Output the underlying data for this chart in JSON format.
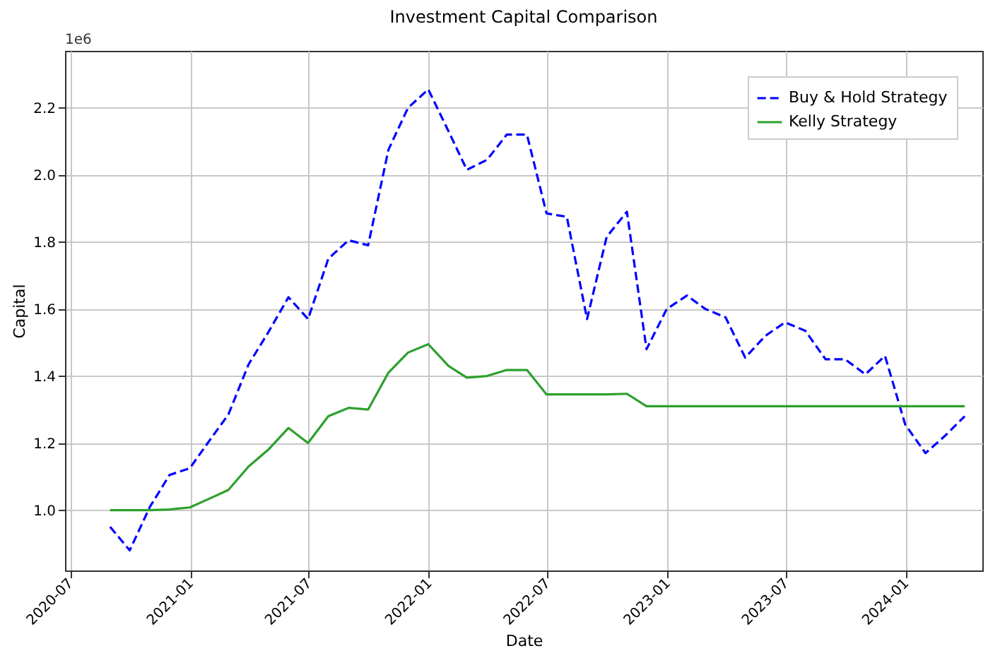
{
  "chart_data": {
    "type": "line",
    "title": "Investment Capital Comparison",
    "xlabel": "Date",
    "ylabel": "Capital",
    "annotations": [
      "1e6"
    ],
    "x": [
      "2020-08-31",
      "2020-09-30",
      "2020-10-31",
      "2020-11-30",
      "2020-12-31",
      "2021-01-31",
      "2021-02-28",
      "2021-03-31",
      "2021-04-30",
      "2021-05-31",
      "2021-06-30",
      "2021-07-31",
      "2021-08-31",
      "2021-09-30",
      "2021-10-31",
      "2021-11-30",
      "2021-12-31",
      "2022-01-31",
      "2022-02-28",
      "2022-03-31",
      "2022-04-30",
      "2022-05-31",
      "2022-06-30",
      "2022-07-31",
      "2022-08-31",
      "2022-09-30",
      "2022-10-31",
      "2022-11-30",
      "2022-12-31",
      "2023-01-31",
      "2023-02-28",
      "2023-03-31",
      "2023-04-30",
      "2023-05-31",
      "2023-06-30",
      "2023-07-31",
      "2023-08-31",
      "2023-09-30",
      "2023-10-31",
      "2023-11-30",
      "2023-12-31",
      "2024-01-31",
      "2024-02-29",
      "2024-03-31"
    ],
    "series": [
      {
        "name": "Buy & Hold Strategy",
        "color": "#0000ff",
        "line_style": "dashed",
        "values": [
          0.95,
          0.88,
          1.01,
          1.105,
          1.125,
          1.21,
          1.285,
          1.435,
          1.53,
          1.635,
          1.57,
          1.75,
          1.805,
          1.79,
          2.075,
          2.2,
          2.255,
          2.13,
          2.015,
          2.045,
          2.12,
          2.12,
          1.885,
          1.875,
          1.57,
          1.815,
          1.89,
          1.48,
          1.6,
          1.64,
          1.6,
          1.575,
          1.455,
          1.52,
          1.56,
          1.535,
          1.45,
          1.45,
          1.405,
          1.46,
          1.255,
          1.17,
          1.22,
          1.28
        ]
      },
      {
        "name": "Kelly Strategy",
        "color": "#2ca02c",
        "line_style": "solid",
        "values": [
          1.0,
          1.0,
          1.0,
          1.002,
          1.008,
          1.035,
          1.06,
          1.13,
          1.18,
          1.245,
          1.2,
          1.28,
          1.305,
          1.3,
          1.41,
          1.47,
          1.495,
          1.43,
          1.395,
          1.4,
          1.418,
          1.418,
          1.345,
          1.345,
          1.345,
          1.345,
          1.347,
          1.31,
          1.31,
          1.31,
          1.31,
          1.31,
          1.31,
          1.31,
          1.31,
          1.31,
          1.31,
          1.31,
          1.31,
          1.31,
          1.31,
          1.31,
          1.31,
          1.31
        ]
      }
    ],
    "xlim": [
      "2020-06-23",
      "2024-04-27"
    ],
    "xticks": [
      "2020-07",
      "2021-01",
      "2021-07",
      "2022-01",
      "2022-07",
      "2023-01",
      "2023-07",
      "2024-01"
    ],
    "ylim": [
      0.82,
      2.37
    ],
    "yticks": [
      {
        "value": 1.0,
        "label": "1.0"
      },
      {
        "value": 1.2,
        "label": "1.2"
      },
      {
        "value": 1.4,
        "label": "1.4"
      },
      {
        "value": 1.6,
        "label": "1.6"
      },
      {
        "value": 1.8,
        "label": "1.8"
      },
      {
        "value": 2.0,
        "label": "2.0"
      },
      {
        "value": 2.2,
        "label": "2.2"
      }
    ],
    "grid": true,
    "legend": "top right"
  }
}
